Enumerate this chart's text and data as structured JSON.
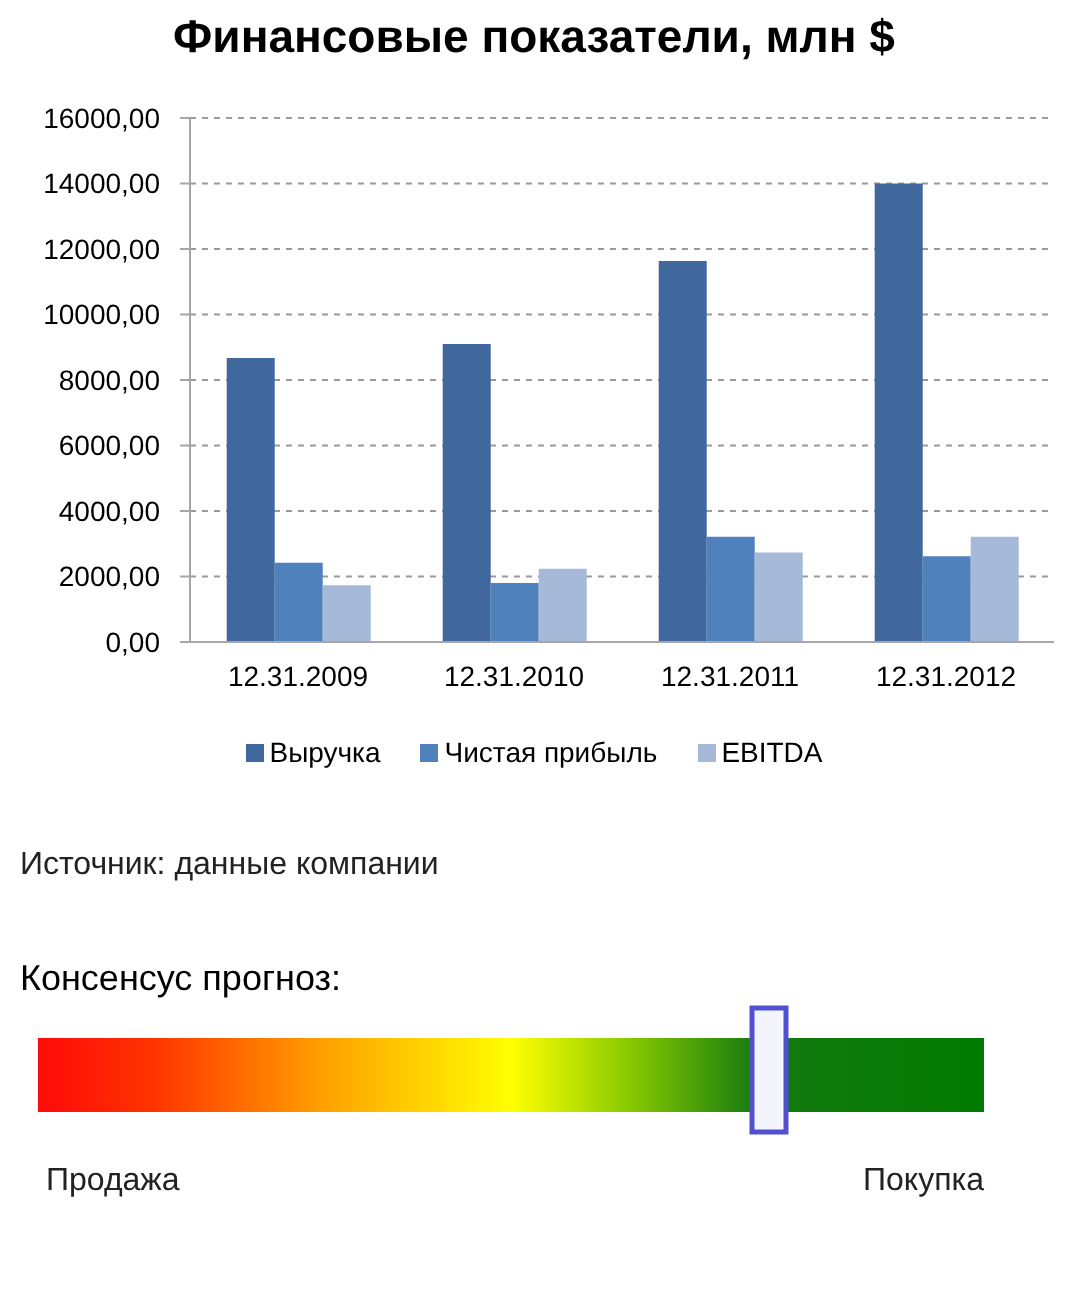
{
  "chart_data": [
    {
      "type": "bar",
      "title": "Финансовые показатели, млн $",
      "categories": [
        "12.31.2009",
        "12.31.2010",
        "12.31.2011",
        "12.31.2012"
      ],
      "series": [
        {
          "name": "Выручка",
          "color": "#41689c",
          "values": [
            8670,
            9100,
            11630,
            14000
          ]
        },
        {
          "name": "Чистая прибыль",
          "color": "#4f81bd",
          "values": [
            2420,
            1800,
            3210,
            2620
          ]
        },
        {
          "name": "EBITDA",
          "color": "#a7b9d8",
          "values": [
            1730,
            2240,
            2730,
            3210
          ]
        }
      ],
      "ylim": [
        0,
        16000
      ],
      "yticks": [
        {
          "value": 0,
          "label": "0,00"
        },
        {
          "value": 2000,
          "label": "2000,00"
        },
        {
          "value": 4000,
          "label": "4000,00"
        },
        {
          "value": 6000,
          "label": "6000,00"
        },
        {
          "value": 8000,
          "label": "8000,00"
        },
        {
          "value": 10000,
          "label": "10000,00"
        },
        {
          "value": 12000,
          "label": "12000,00"
        },
        {
          "value": 14000,
          "label": "14000,00"
        },
        {
          "value": 16000,
          "label": "16000,00"
        }
      ],
      "grid": "y",
      "legend": "bottom",
      "annotations": [
        "Источник: данные компании"
      ]
    },
    {
      "type": "other",
      "title": "Консенсус прогноз:",
      "annotations": [
        "Продажа",
        "Покупка"
      ]
    }
  ]
}
